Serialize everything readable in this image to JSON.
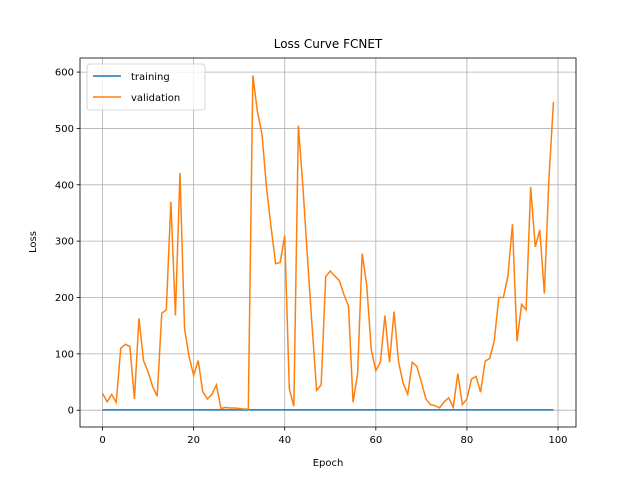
{
  "chart_data": {
    "type": "line",
    "title": "Loss Curve FCNET",
    "xlabel": "Epoch",
    "ylabel": "Loss",
    "x": [
      0,
      1,
      2,
      3,
      4,
      5,
      6,
      7,
      8,
      9,
      10,
      11,
      12,
      13,
      14,
      15,
      16,
      17,
      18,
      19,
      20,
      21,
      22,
      23,
      24,
      25,
      26,
      27,
      28,
      29,
      30,
      31,
      32,
      33,
      34,
      35,
      36,
      37,
      38,
      39,
      40,
      41,
      42,
      43,
      44,
      45,
      46,
      47,
      48,
      49,
      50,
      51,
      52,
      53,
      54,
      55,
      56,
      57,
      58,
      59,
      60,
      61,
      62,
      63,
      64,
      65,
      66,
      67,
      68,
      69,
      70,
      71,
      72,
      73,
      74,
      75,
      76,
      77,
      78,
      79,
      80,
      81,
      82,
      83,
      84,
      85,
      86,
      87,
      88,
      89,
      90,
      91,
      92,
      93,
      94,
      95,
      96,
      97,
      98,
      99
    ],
    "series": [
      {
        "name": "training",
        "color": "#1f77b4",
        "values": [
          0.5,
          0.5,
          0.5,
          0.5,
          0.5,
          0.5,
          0.5,
          0.5,
          0.5,
          0.5,
          0.5,
          0.5,
          0.5,
          0.5,
          0.5,
          0.5,
          0.5,
          0.5,
          0.5,
          0.5,
          0.5,
          0.5,
          0.5,
          0.5,
          0.5,
          0.5,
          0.5,
          0.5,
          0.5,
          0.5,
          0.5,
          0.5,
          0.5,
          0.5,
          0.5,
          0.5,
          0.5,
          0.5,
          0.5,
          0.5,
          0.5,
          0.5,
          0.5,
          0.5,
          0.5,
          0.5,
          0.5,
          0.5,
          0.5,
          0.5,
          0.5,
          0.5,
          0.5,
          0.5,
          0.5,
          0.5,
          0.5,
          0.5,
          0.5,
          0.5,
          0.5,
          0.5,
          0.5,
          0.5,
          0.5,
          0.5,
          0.5,
          0.5,
          0.5,
          0.5,
          0.5,
          0.5,
          0.5,
          0.5,
          0.5,
          0.5,
          0.5,
          0.5,
          0.5,
          0.5,
          0.5,
          0.5,
          0.5,
          0.5,
          0.5,
          0.5,
          0.5,
          0.5,
          0.5,
          0.5,
          0.5,
          0.5,
          0.5,
          0.5,
          0.5,
          0.5,
          0.5,
          0.5,
          0.5,
          0.5
        ]
      },
      {
        "name": "validation",
        "color": "#ff7f0e",
        "values": [
          30,
          15,
          28,
          14,
          110,
          117,
          113,
          20,
          163,
          88,
          68,
          42,
          25,
          172,
          178,
          370,
          168,
          421,
          145,
          95,
          62,
          88,
          33,
          20,
          28,
          45,
          3,
          5,
          4,
          4,
          3,
          2,
          2,
          594,
          530,
          490,
          395,
          325,
          260,
          262,
          310,
          38,
          7,
          505,
          395,
          270,
          150,
          35,
          45,
          237,
          247,
          238,
          230,
          205,
          185,
          14,
          65,
          278,
          222,
          108,
          70,
          85,
          168,
          85,
          175,
          85,
          48,
          28,
          85,
          78,
          50,
          20,
          10,
          8,
          4,
          15,
          22,
          5,
          65,
          10,
          20,
          55,
          60,
          32,
          87,
          92,
          123,
          200,
          200,
          238,
          330,
          122,
          188,
          178,
          396,
          290,
          320,
          207,
          410,
          547
        ]
      }
    ],
    "xlim": [
      -4.95,
      103.95
    ],
    "xticks": [
      0,
      20,
      40,
      60,
      80,
      100
    ],
    "ylim": [
      -29.8,
      625
    ],
    "yticks": [
      0,
      100,
      200,
      300,
      400,
      500,
      600
    ],
    "grid": true,
    "legend": "upper left"
  }
}
